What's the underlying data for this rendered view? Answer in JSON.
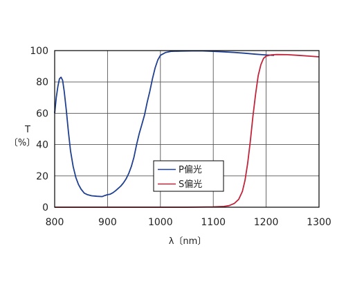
{
  "chart_data": {
    "type": "line",
    "xlabel": "λ〔nm〕",
    "ylabel": [
      "T",
      "〔%〕"
    ],
    "xlim": [
      800,
      1300
    ],
    "ylim": [
      0,
      100
    ],
    "x_ticks": [
      800,
      900,
      1000,
      1100,
      1200,
      1300
    ],
    "y_ticks": [
      0,
      20,
      40,
      60,
      80,
      100
    ],
    "grid": true,
    "legend_position": "center",
    "series": [
      {
        "name": "P偏光",
        "color": "#1f3f8f",
        "points": [
          [
            800,
            60
          ],
          [
            803,
            70
          ],
          [
            806,
            77
          ],
          [
            809,
            82
          ],
          [
            812,
            83
          ],
          [
            815,
            81
          ],
          [
            818,
            74
          ],
          [
            822,
            62
          ],
          [
            826,
            48
          ],
          [
            830,
            36
          ],
          [
            835,
            26
          ],
          [
            840,
            19
          ],
          [
            845,
            14.5
          ],
          [
            850,
            11.5
          ],
          [
            856,
            9
          ],
          [
            862,
            8
          ],
          [
            870,
            7.3
          ],
          [
            880,
            7
          ],
          [
            890,
            6.8
          ],
          [
            895,
            7.5
          ],
          [
            900,
            8
          ],
          [
            905,
            8.3
          ],
          [
            910,
            9.2
          ],
          [
            915,
            10.5
          ],
          [
            920,
            12
          ],
          [
            925,
            13.5
          ],
          [
            930,
            15.5
          ],
          [
            935,
            18
          ],
          [
            940,
            21.5
          ],
          [
            945,
            26
          ],
          [
            950,
            32
          ],
          [
            955,
            40
          ],
          [
            960,
            47
          ],
          [
            965,
            53
          ],
          [
            970,
            59
          ],
          [
            975,
            67
          ],
          [
            980,
            74
          ],
          [
            985,
            82
          ],
          [
            990,
            89
          ],
          [
            995,
            94
          ],
          [
            1000,
            97
          ],
          [
            1010,
            98.8
          ],
          [
            1020,
            99.5
          ],
          [
            1040,
            99.7
          ],
          [
            1060,
            99.8
          ],
          [
            1080,
            99.8
          ],
          [
            1100,
            99.5
          ],
          [
            1120,
            99.2
          ],
          [
            1140,
            98.8
          ],
          [
            1160,
            98.3
          ],
          [
            1180,
            97.7
          ],
          [
            1200,
            97.2
          ],
          [
            1215,
            97.0
          ]
        ]
      },
      {
        "name": "S偏光",
        "color": "#c0243a",
        "points": [
          [
            800,
            0
          ],
          [
            1050,
            0
          ],
          [
            1100,
            0.2
          ],
          [
            1120,
            0.5
          ],
          [
            1130,
            1
          ],
          [
            1140,
            2.5
          ],
          [
            1148,
            5
          ],
          [
            1155,
            10
          ],
          [
            1160,
            17
          ],
          [
            1165,
            28
          ],
          [
            1170,
            42
          ],
          [
            1175,
            58
          ],
          [
            1180,
            72
          ],
          [
            1185,
            84
          ],
          [
            1190,
            91
          ],
          [
            1195,
            95
          ],
          [
            1200,
            96.5
          ],
          [
            1210,
            97.3
          ],
          [
            1220,
            97.5
          ],
          [
            1240,
            97.4
          ],
          [
            1260,
            97
          ],
          [
            1280,
            96.5
          ],
          [
            1300,
            96
          ]
        ]
      }
    ]
  }
}
